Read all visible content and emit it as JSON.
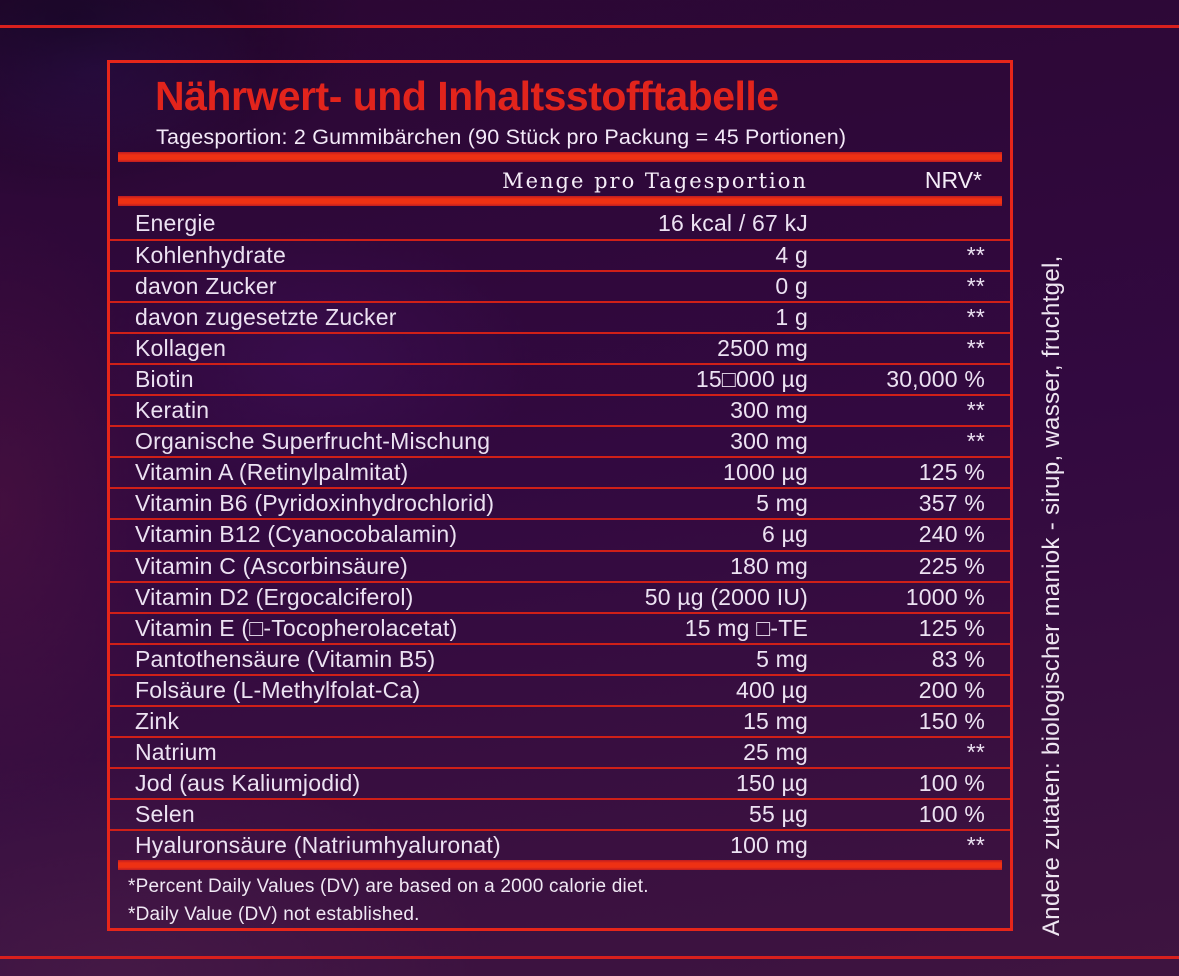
{
  "label": {
    "title": "Nährwert- und Inhaltsstofftabelle",
    "subtitle": "Tagesportion: 2 Gummibärchen (90 Stück pro Packung = 45 Portionen)",
    "columns": {
      "amount": "Menge pro Tagesportion",
      "nrv": "NRV*"
    },
    "footnotes": {
      "line1": "*Percent Daily Values (DV) are based on a 2000 calorie diet.",
      "line2": "*Daily Value (DV) not established."
    },
    "side_text": "Andere zutaten: biologischer maniok - sirup, wasser, fruchtgel,",
    "colors": {
      "accent_red": "#e6261a",
      "bar_red": "#ee3113",
      "title_red": "#e2241c",
      "background_purple": "#320940",
      "text_light": "#ece2f2"
    }
  },
  "table": {
    "rows": [
      {
        "name": "Energie",
        "amount": "16 kcal / 67 kJ",
        "nrv": ""
      },
      {
        "name": "Kohlenhydrate",
        "amount": "4 g",
        "nrv": "**"
      },
      {
        "name": "davon Zucker",
        "amount": "0 g",
        "nrv": "**"
      },
      {
        "name": "davon zugesetzte Zucker",
        "amount": "1 g",
        "nrv": "**"
      },
      {
        "name": "Kollagen",
        "amount": "2500 mg",
        "nrv": "**"
      },
      {
        "name": "Biotin",
        "amount": "15□000 µg",
        "nrv": "30,000 %"
      },
      {
        "name": "Keratin",
        "amount": "300 mg",
        "nrv": "**"
      },
      {
        "name": "Organische Superfrucht-Mischung",
        "amount": "300 mg",
        "nrv": "**"
      },
      {
        "name": "Vitamin A (Retinylpalmitat)",
        "amount": "1000 µg",
        "nrv": "125 %"
      },
      {
        "name": "Vitamin B6 (Pyridoxinhydrochlorid)",
        "amount": "5 mg",
        "nrv": "357 %"
      },
      {
        "name": "Vitamin B12 (Cyanocobalamin)",
        "amount": "6 µg",
        "nrv": "240 %"
      },
      {
        "name": "Vitamin C (Ascorbinsäure)",
        "amount": "180 mg",
        "nrv": "225 %"
      },
      {
        "name": "Vitamin D2 (Ergocalciferol)",
        "amount": "50 µg (2000 IU)",
        "nrv": "1000 %"
      },
      {
        "name": "Vitamin E (□-Tocopherolacetat)",
        "amount": "15 mg □-TE",
        "nrv": "125 %"
      },
      {
        "name": "Pantothensäure (Vitamin B5)",
        "amount": "5 mg",
        "nrv": "83 %"
      },
      {
        "name": "Folsäure (L-Methylfolat-Ca)",
        "amount": "400 µg",
        "nrv": "200 %"
      },
      {
        "name": "Zink",
        "amount": "15 mg",
        "nrv": "150 %"
      },
      {
        "name": "Natrium",
        "amount": "25 mg",
        "nrv": "**"
      },
      {
        "name": "Jod (aus Kaliumjodid)",
        "amount": "150 µg",
        "nrv": "100 %"
      },
      {
        "name": "Selen",
        "amount": "55 µg",
        "nrv": "100 %"
      },
      {
        "name": "Hyaluronsäure (Natriumhyaluronat)",
        "amount": "100 mg",
        "nrv": "**"
      }
    ]
  }
}
